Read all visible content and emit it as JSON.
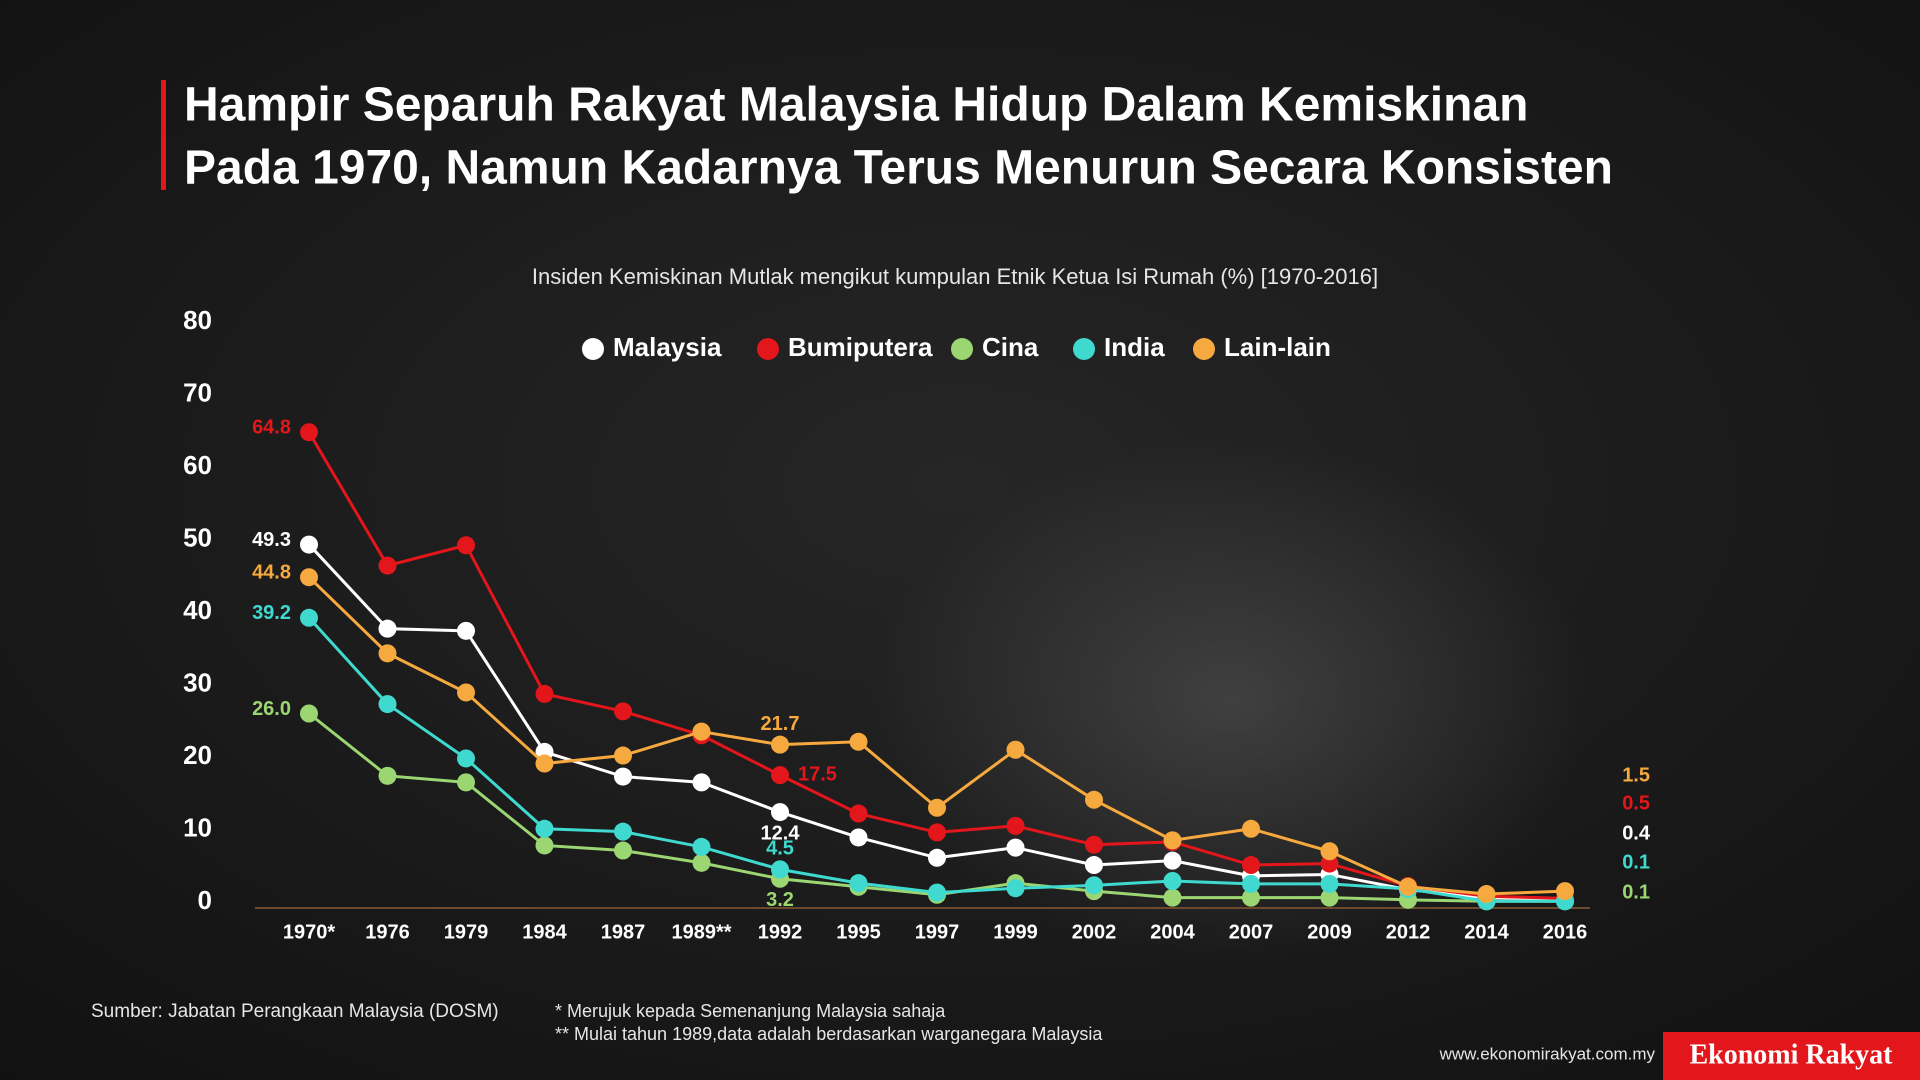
{
  "chart_data": {
    "type": "line",
    "title_lines": [
      "Hampir Separuh Rakyat Malaysia Hidup Dalam Kemiskinan",
      "Pada 1970, Namun Kadarnya Terus Menurun Secara Konsisten"
    ],
    "subtitle": "Insiden Kemiskinan Mutlak mengikut kumpulan Etnik Ketua Isi Rumah (%) [1970-2016]",
    "categories": [
      "1970*",
      "1976",
      "1979",
      "1984",
      "1987",
      "1989**",
      "1992",
      "1995",
      "1997",
      "1999",
      "2002",
      "2004",
      "2007",
      "2009",
      "2012",
      "2014",
      "2016"
    ],
    "ylim": [
      0,
      80
    ],
    "yticks": [
      0,
      10,
      20,
      30,
      40,
      50,
      60,
      70,
      80
    ],
    "series": [
      {
        "name": "Malaysia",
        "color": "#ffffff",
        "values": [
          49.3,
          37.7,
          37.4,
          20.7,
          17.3,
          16.5,
          12.4,
          8.9,
          6.1,
          7.5,
          5.1,
          5.7,
          3.6,
          3.8,
          1.7,
          0.6,
          0.4
        ],
        "value_labels": [
          "49.3",
          null,
          null,
          null,
          null,
          null,
          "12.4",
          null,
          null,
          null,
          null,
          null,
          null,
          null,
          null,
          null,
          "0.4"
        ]
      },
      {
        "name": "Bumiputera",
        "color": "#e3161b",
        "values": [
          64.8,
          46.4,
          49.2,
          28.7,
          26.3,
          23.0,
          17.5,
          12.2,
          9.6,
          10.5,
          7.9,
          8.3,
          5.1,
          5.3,
          2.2,
          0.8,
          0.5
        ],
        "value_labels": [
          "64.8",
          null,
          null,
          null,
          null,
          null,
          "17.5",
          null,
          null,
          null,
          null,
          null,
          null,
          null,
          null,
          null,
          "0.5"
        ]
      },
      {
        "name": "Cina",
        "color": "#9bd672",
        "values": [
          26.0,
          17.4,
          16.5,
          7.8,
          7.1,
          5.4,
          3.2,
          2.1,
          1.0,
          2.6,
          1.5,
          0.6,
          0.6,
          0.6,
          0.3,
          0.1,
          0.1
        ],
        "value_labels": [
          "26.0",
          null,
          null,
          null,
          null,
          null,
          "3.2",
          null,
          null,
          null,
          null,
          null,
          null,
          null,
          null,
          null,
          "0.1"
        ]
      },
      {
        "name": "India",
        "color": "#3fd9cf",
        "values": [
          39.2,
          27.3,
          19.8,
          10.1,
          9.7,
          7.6,
          4.5,
          2.6,
          1.3,
          1.9,
          2.3,
          2.9,
          2.5,
          2.5,
          1.8,
          0.1,
          0.1
        ],
        "value_labels": [
          "39.2",
          null,
          null,
          null,
          null,
          null,
          "4.5",
          null,
          null,
          null,
          null,
          null,
          null,
          null,
          null,
          null,
          "0.1"
        ]
      },
      {
        "name": "Lain-lain",
        "color": "#f5a93e",
        "values": [
          44.8,
          34.3,
          28.9,
          19.1,
          20.2,
          23.5,
          21.7,
          22.1,
          13.0,
          21.0,
          14.1,
          8.5,
          10.1,
          7.0,
          2.1,
          1.1,
          1.5
        ],
        "value_labels": [
          "44.8",
          null,
          null,
          null,
          null,
          null,
          "21.7",
          null,
          null,
          null,
          null,
          null,
          null,
          null,
          null,
          null,
          "1.5"
        ]
      }
    ],
    "source": "Sumber: Jabatan Perangkaan Malaysia (DOSM)",
    "notes": [
      "*  Merujuk kepada Semenanjung Malaysia sahaja",
      "** Mulai tahun 1989,data adalah berdasarkan warganegara Malaysia"
    ],
    "website": "www.ekonomirakyat.com.my",
    "brand": "Ekonomi Rakyat"
  }
}
